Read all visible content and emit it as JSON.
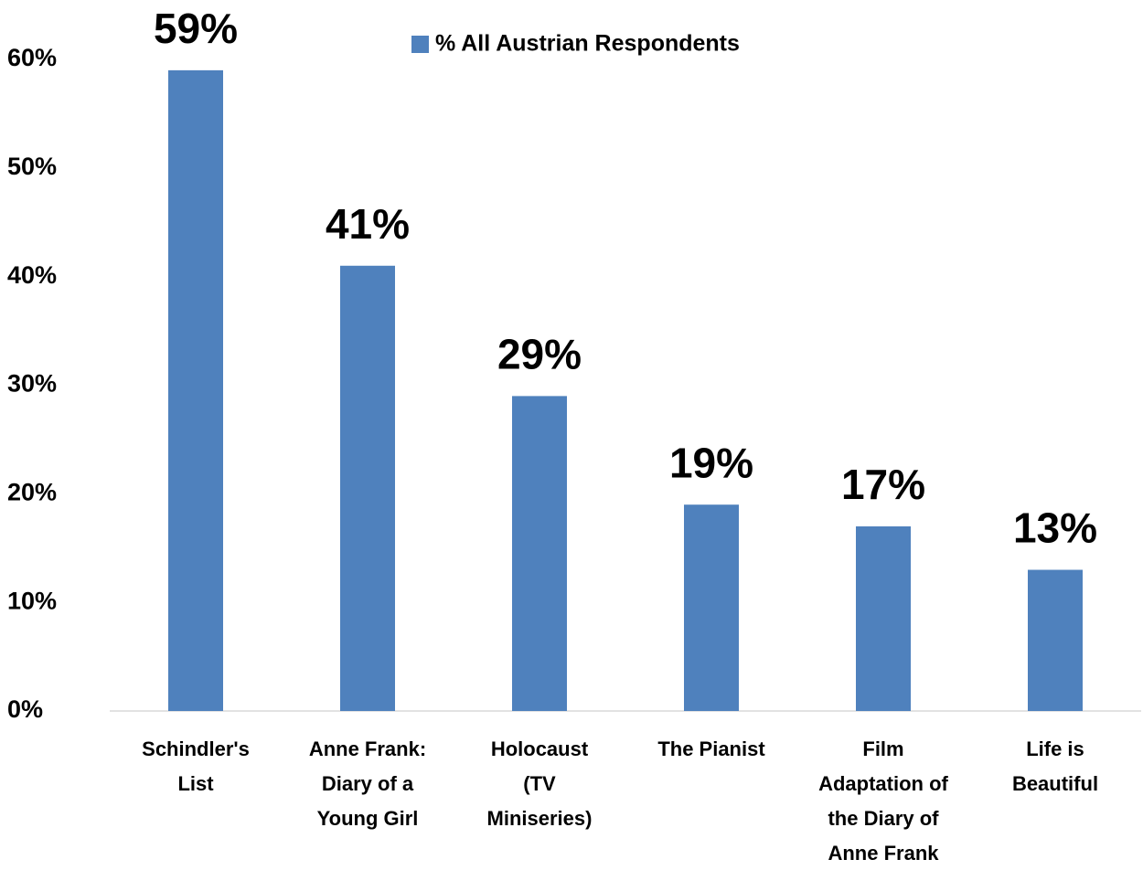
{
  "chart_data": {
    "type": "bar",
    "categories": [
      "Schindler's\nList",
      "Anne Frank:\nDiary of a\nYoung Girl",
      "Holocaust\n(TV\nMiniseries)",
      "The Pianist",
      "Film\nAdaptation of\nthe Diary of\nAnne Frank",
      "Life is\nBeautiful"
    ],
    "series": [
      {
        "name": "% All Austrian Respondents",
        "color": "#4f81bd",
        "values": [
          59,
          41,
          29,
          19,
          17,
          13
        ],
        "value_labels": [
          "59%",
          "41%",
          "29%",
          "19%",
          "17%",
          "13%"
        ]
      }
    ],
    "ylim": [
      0,
      60
    ],
    "yticks": [
      {
        "value": 0,
        "label": "0%"
      },
      {
        "value": 10,
        "label": "10%"
      },
      {
        "value": 20,
        "label": "20%"
      },
      {
        "value": 30,
        "label": "30%"
      },
      {
        "value": 40,
        "label": "40%"
      },
      {
        "value": 50,
        "label": "50%"
      },
      {
        "value": 60,
        "label": "60%"
      }
    ],
    "grid": false,
    "legend": "top"
  }
}
